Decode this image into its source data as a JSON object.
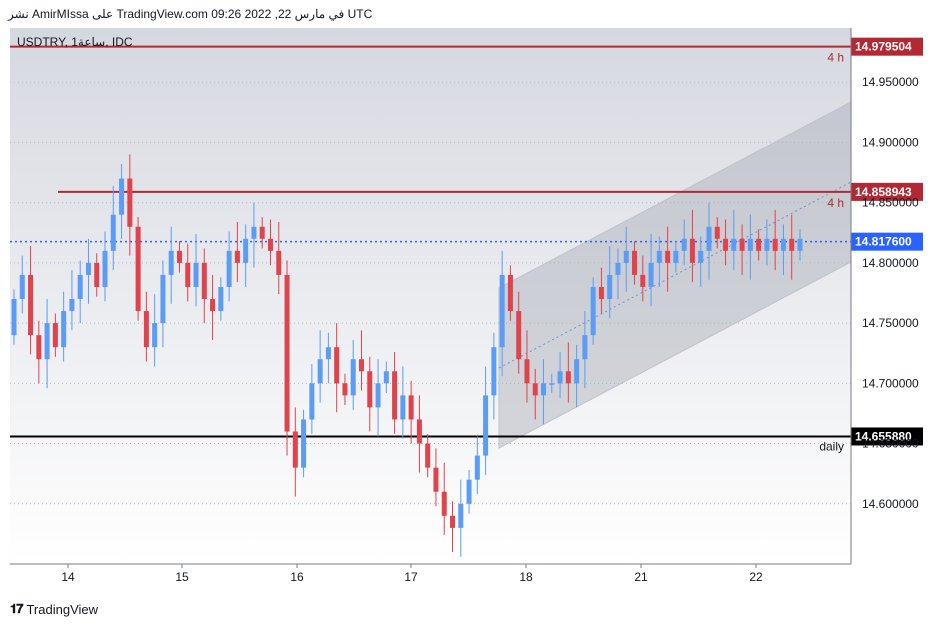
{
  "header": {
    "published_line": "نشر AmirMIssa على TradingView.com في مارس 22, 2022 09:26 UTC"
  },
  "chart_title": "USDTRY, 1ساعة, IDC",
  "footer": {
    "brand": "TradingView",
    "logo_icon": "tradingview-logo-icon"
  },
  "colors": {
    "up": "#5b9cf6",
    "down": "#e0434c",
    "resistance": "#b22833",
    "support": "#000000",
    "current": "#2962ff",
    "channel": "#d1d4dc"
  },
  "chart_data": {
    "type": "candlestick",
    "symbol": "USDTRY",
    "interval": "1ساعة",
    "source": "IDC",
    "ylim": [
      14.55,
      14.995
    ],
    "y_ticks": [
      "14.950000",
      "14.900000",
      "14.850000",
      "14.800000",
      "14.750000",
      "14.700000",
      "14.650000",
      "14.600000"
    ],
    "x_ticks": [
      "14",
      "15",
      "16",
      "17",
      "18",
      "21",
      "22"
    ],
    "levels": [
      {
        "price": "14.979504",
        "value": 14.979504,
        "label": "4 h",
        "color": "#b22833",
        "style": "solid"
      },
      {
        "price": "14.858943",
        "value": 14.858943,
        "label": "4 h",
        "color": "#b22833",
        "style": "solid"
      },
      {
        "price": "14.817600",
        "value": 14.8176,
        "label": "",
        "color": "#2962ff",
        "style": "dotted"
      },
      {
        "price": "14.655880",
        "value": 14.65588,
        "label": "daily",
        "color": "#000000",
        "style": "solid"
      }
    ],
    "closes": [
      14.77,
      14.79,
      14.74,
      14.72,
      14.75,
      14.73,
      14.76,
      14.77,
      14.79,
      14.8,
      14.78,
      14.81,
      14.84,
      14.87,
      14.83,
      14.76,
      14.73,
      14.75,
      14.79,
      14.81,
      14.8,
      14.78,
      14.8,
      14.77,
      14.76,
      14.78,
      14.81,
      14.8,
      14.82,
      14.83,
      14.82,
      14.81,
      14.79,
      14.66,
      14.63,
      14.67,
      14.7,
      14.72,
      14.73,
      14.7,
      14.69,
      14.72,
      14.71,
      14.68,
      14.7,
      14.71,
      14.67,
      14.69,
      14.67,
      14.65,
      14.63,
      14.61,
      14.59,
      14.58,
      14.6,
      14.62,
      14.64,
      14.69,
      14.73,
      14.79,
      14.76,
      14.72,
      14.7,
      14.69,
      14.7,
      14.7,
      14.71,
      14.7,
      14.72,
      14.74,
      14.78,
      14.77,
      14.79,
      14.8,
      14.81,
      14.79,
      14.78,
      14.8,
      14.81,
      14.8,
      14.81,
      14.82,
      14.8,
      14.81,
      14.83,
      14.82,
      14.81,
      14.82,
      14.81,
      14.82,
      14.81,
      14.82,
      14.81,
      14.82,
      14.81,
      14.82
    ]
  }
}
